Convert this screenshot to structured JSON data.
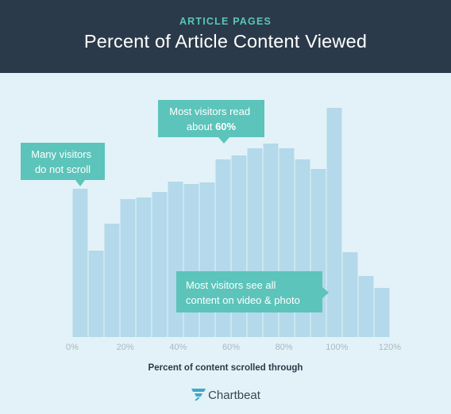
{
  "header": {
    "subtitle": "ARTICLE PAGES",
    "title": "Percent of Article Content Viewed"
  },
  "chart_data": {
    "type": "bar",
    "title": "Percent of Article Content Viewed",
    "subtitle": "ARTICLE PAGES",
    "xlabel": "Percent of content scrolled through",
    "ylabel": "",
    "x_ticks": [
      "0%",
      "20%",
      "40%",
      "60%",
      "80%",
      "100%",
      "120%"
    ],
    "x_bin_start": [
      0,
      6,
      12,
      18,
      24,
      30,
      36,
      42,
      48,
      54,
      60,
      66,
      72,
      78,
      84,
      90,
      96,
      102,
      108,
      114
    ],
    "values": [
      187,
      109,
      143,
      174,
      176,
      183,
      196,
      193,
      195,
      224,
      229,
      238,
      244,
      238,
      224,
      212,
      289,
      107,
      77,
      62
    ],
    "ylim": [
      0,
      300
    ],
    "grid": false,
    "bar_color": "#b3d9ea",
    "annotations": [
      {
        "lines": [
          "Many visitors",
          "do not scroll"
        ],
        "bold": ""
      },
      {
        "lines": [
          "Most visitors read",
          "about "
        ],
        "bold": "60%"
      },
      {
        "lines": [
          "Most visitors see all",
          "content on video & photo"
        ],
        "bold": ""
      }
    ]
  },
  "logo": {
    "text": "Chartbeat"
  },
  "colors": {
    "header_bg": "#2b3a4a",
    "accent": "#59c4bf",
    "callout": "#5cc4ba",
    "page_bg": "#e3f2f8"
  }
}
